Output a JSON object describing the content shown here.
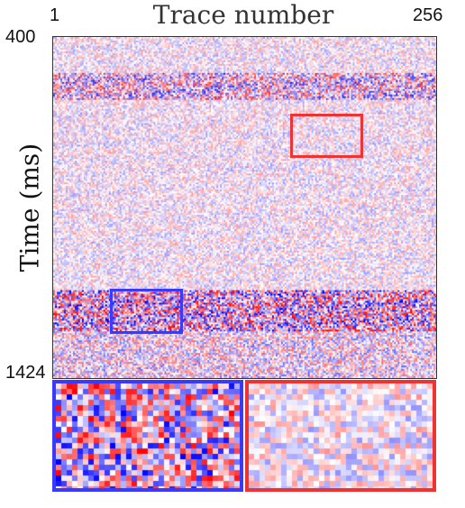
{
  "figure": {
    "x_title": "Trace number",
    "y_title": "Time (ms)",
    "trace_start": "1",
    "trace_end": "256",
    "time_start": "400",
    "time_end": "1424"
  },
  "colors": {
    "blue_box": "#3a3aff",
    "red_box": "#ee3333",
    "colormap": [
      "#1a1aff",
      "#ffffff",
      "#ff1a1a"
    ]
  },
  "insets": {
    "blue": {
      "name": "zoom-blue",
      "matches": "box-blue"
    },
    "red": {
      "name": "zoom-red",
      "matches": "box-red"
    }
  }
}
